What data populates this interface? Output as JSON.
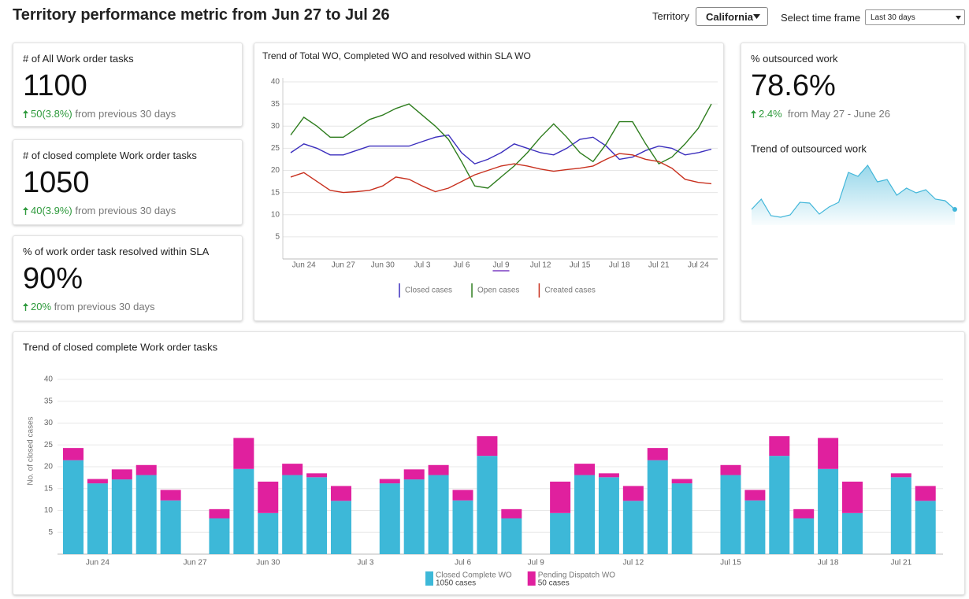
{
  "header": {
    "title": "Territory performance metric from Jun 27 to Jul 26",
    "territory_label": "Territory",
    "territory": "California",
    "timeframe_label": "Select time frame",
    "timeframe": "Last 30 days"
  },
  "kpis": [
    {
      "title": "# of All Work order tasks",
      "value": "1100",
      "change": "50",
      "change_pct": "(3.8%)",
      "note": "from previous 30 days"
    },
    {
      "title": "# of closed complete Work order tasks",
      "value": "1050",
      "change": "40",
      "change_pct": "(3.9%)",
      "note": "from previous 30 days"
    },
    {
      "title": "% of work order task resolved within SLA",
      "value": "90%",
      "change": "20%",
      "note": "from previous 30 days"
    }
  ],
  "outsourced": {
    "title": "% outsourced work",
    "value": "78.6%",
    "change": "2.4%",
    "note": "from May 27 - June 26"
  },
  "chart_data": [
    {
      "type": "area",
      "title": "Trend of outsourced work",
      "color": "#41b6d9",
      "ylim": [
        0,
        80
      ],
      "values": [
        20,
        33,
        12,
        10,
        13,
        29,
        28,
        14,
        23,
        29,
        67,
        62,
        76,
        55,
        58,
        38,
        47,
        41,
        45,
        33,
        31,
        20
      ]
    },
    {
      "type": "line",
      "title": "Trend of Total WO, Completed WO and resolved within SLA WO",
      "categories": [
        null,
        "Jun 24",
        null,
        null,
        "Jun 27",
        null,
        null,
        "Jun 30",
        null,
        null,
        "Jul 3",
        null,
        null,
        "Jul 6",
        null,
        null,
        "Jul 9",
        null,
        null,
        "Jul 12",
        null,
        null,
        "Jul 15",
        null,
        null,
        "Jul 18",
        null,
        null,
        "Jul 21",
        null,
        null,
        "Jul 24",
        null
      ],
      "series": [
        {
          "name": "Closed cases",
          "color": "#3a2dbd",
          "values": [
            24,
            26,
            25,
            23.5,
            23.5,
            24.5,
            25.5,
            25.5,
            25.5,
            25.5,
            26.5,
            27.5,
            28,
            24,
            21.5,
            22.5,
            24,
            26,
            25,
            24,
            23.5,
            25,
            27,
            27.5,
            25.5,
            22.5,
            23,
            24.5,
            25.5,
            25,
            23.5,
            24,
            24.8
          ]
        },
        {
          "name": "Open cases",
          "color": "#2e7d1e",
          "values": [
            28,
            32,
            30,
            27.5,
            27.5,
            29.5,
            31.5,
            32.5,
            34,
            35,
            32.5,
            30,
            27,
            22,
            16.5,
            16,
            18.5,
            21,
            24,
            27.5,
            30.5,
            27.5,
            24,
            22,
            26,
            31,
            31,
            26,
            21.5,
            23,
            26,
            29.5,
            35
          ]
        },
        {
          "name": "Created cases",
          "color": "#c8301e",
          "values": [
            18.5,
            19.5,
            17.5,
            15.5,
            15,
            15.2,
            15.5,
            16.5,
            18.5,
            18,
            16.5,
            15.2,
            16,
            17.5,
            19,
            20,
            21,
            21.5,
            21,
            20.3,
            19.8,
            20.2,
            20.5,
            21,
            22.5,
            23.8,
            23.5,
            22.5,
            22,
            20.5,
            18,
            17.3,
            17
          ]
        }
      ],
      "ylim": [
        0,
        40
      ],
      "yticks": [
        5,
        10,
        15,
        20,
        25,
        30,
        35,
        40
      ],
      "grid": true
    },
    {
      "type": "stacked_bar",
      "title": "Trend of closed complete Work order tasks",
      "y_label": "No. of closed cases",
      "categories": [
        null,
        "Jun 24",
        null,
        null,
        null,
        "Jun 27",
        null,
        null,
        "Jun 30",
        null,
        null,
        null,
        "Jul 3",
        null,
        null,
        null,
        "Jul 6",
        null,
        null,
        "Jul 9",
        null,
        null,
        null,
        "Jul 12",
        null,
        null,
        null,
        "Jul 15",
        null,
        null,
        null,
        "Jul 18",
        null,
        null,
        "Jul 21",
        null
      ],
      "series": [
        {
          "name": "Closed Complete WO",
          "total_label": "1050 cases",
          "color": "#3db8d8",
          "values": [
            21.5,
            16.2,
            17.1,
            18.1,
            12.3,
            null,
            8.2,
            19.5,
            9.4,
            18.1,
            17.6,
            12.2,
            null,
            16.2,
            17.1,
            18.1,
            12.3,
            22.5,
            8.2,
            null,
            9.4,
            18.1,
            17.6,
            12.2,
            21.5,
            16.2,
            null,
            18.1,
            12.3,
            22.5,
            8.2,
            19.5,
            9.4,
            null,
            17.6,
            12.2
          ]
        },
        {
          "name": "Pending Dispatch WO",
          "total_label": "50 cases",
          "color": "#e0209e",
          "values": [
            2.8,
            1.0,
            2.3,
            2.3,
            2.4,
            null,
            2.1,
            7.1,
            7.2,
            2.6,
            0.9,
            3.4,
            null,
            1.0,
            2.3,
            2.3,
            2.4,
            4.5,
            2.1,
            null,
            7.2,
            2.6,
            0.9,
            3.4,
            2.8,
            1.0,
            null,
            2.3,
            2.4,
            4.5,
            2.1,
            7.1,
            7.2,
            null,
            0.9,
            3.4
          ]
        }
      ],
      "ylim": [
        0,
        40
      ],
      "yticks": [
        5,
        10,
        15,
        20,
        25,
        30,
        35,
        40
      ],
      "grid": true
    }
  ]
}
